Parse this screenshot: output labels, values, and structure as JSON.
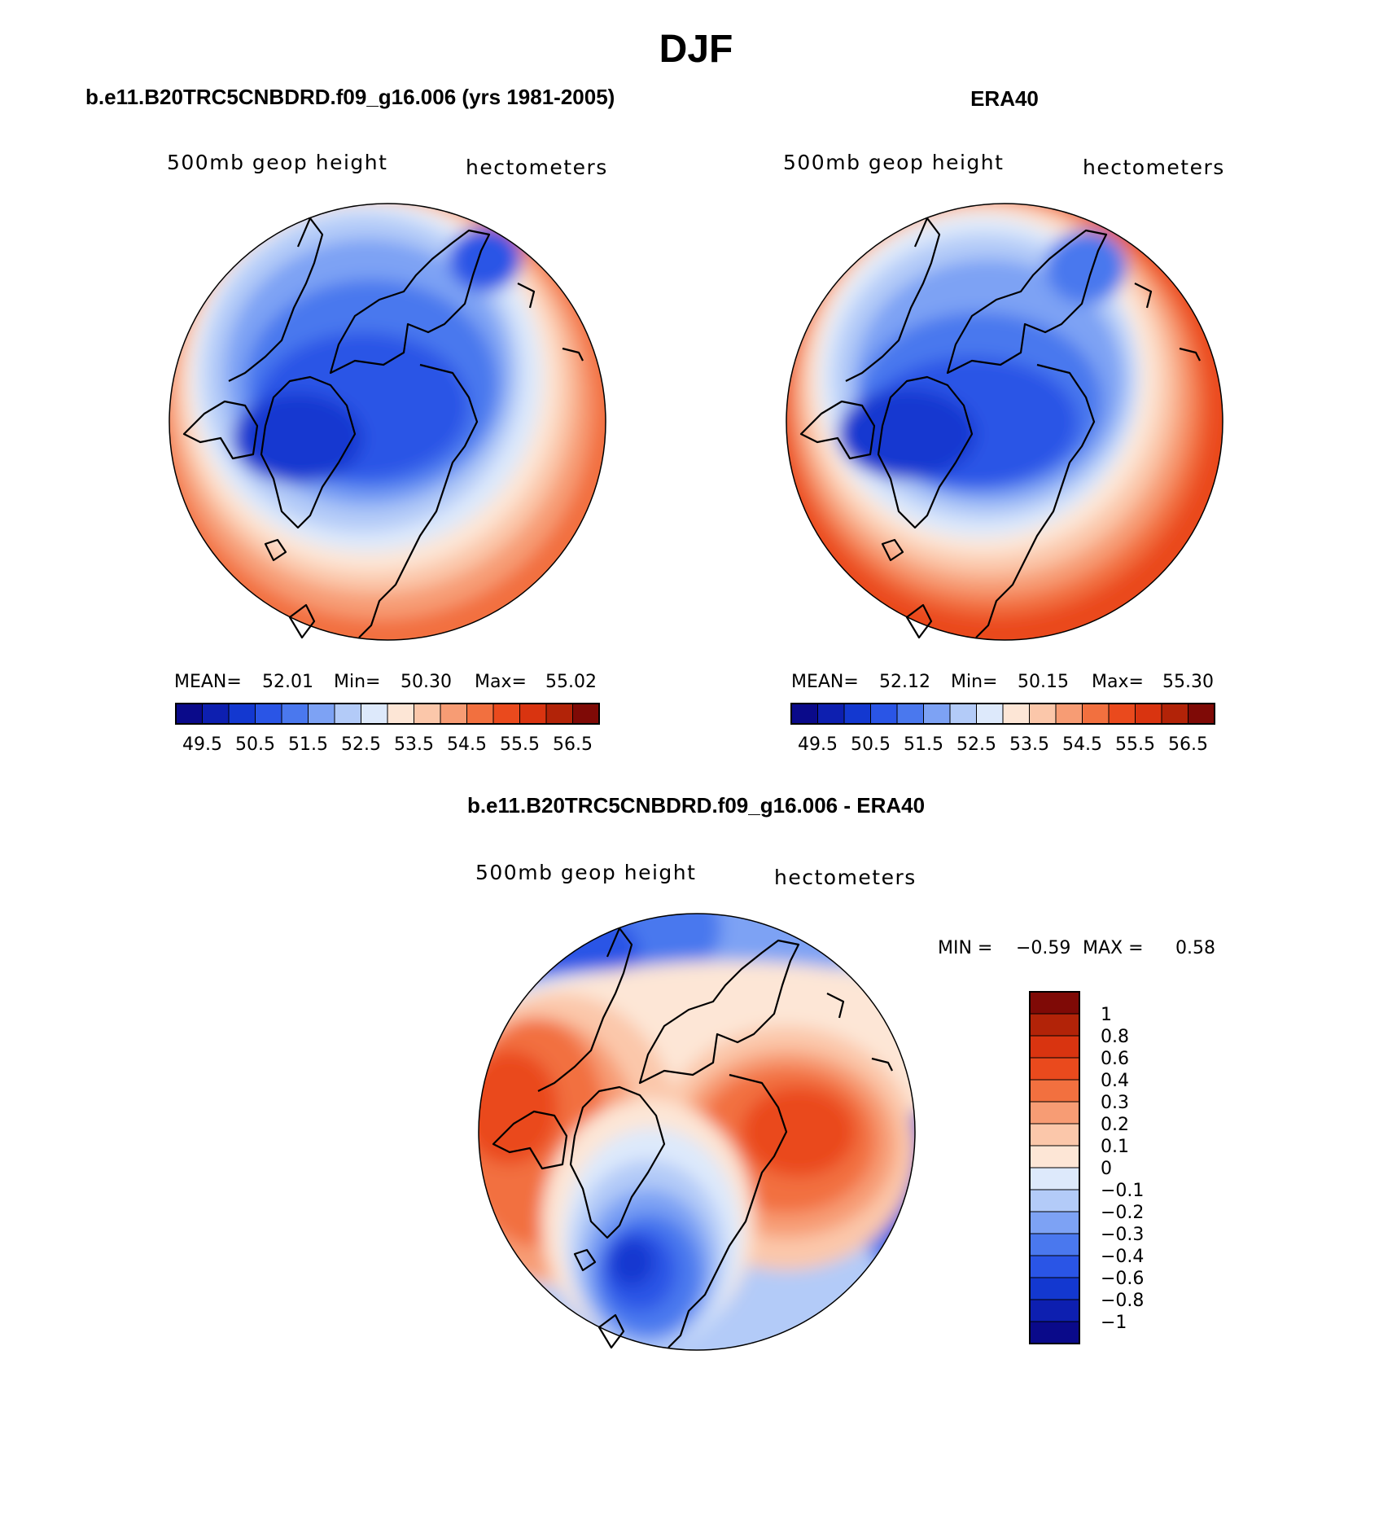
{
  "title": "DJF",
  "panels": {
    "model": {
      "heading": "b.e11.B20TRC5CNBDRD.f09_g16.006 (yrs 1981-2005)",
      "variable": "500mb geop height",
      "units": "hectometers",
      "stats": {
        "mean_label": "MEAN=",
        "mean": "52.01",
        "min_label": "Min=",
        "min": "50.30",
        "max_label": "Max=",
        "max": "55.02"
      }
    },
    "obs": {
      "heading": "ERA40",
      "variable": "500mb geop height",
      "units": "hectometers",
      "stats": {
        "mean_label": "MEAN=",
        "mean": "52.12",
        "min_label": "Min=",
        "min": "50.15",
        "max_label": "Max=",
        "max": "55.30"
      }
    },
    "diff": {
      "heading": "b.e11.B20TRC5CNBDRD.f09_g16.006 - ERA40",
      "variable": "500mb geop height",
      "units": "hectometers",
      "stats": {
        "min_label": "MIN =",
        "min": "−0.59",
        "max_label": "MAX =",
        "max": "0.58"
      }
    }
  },
  "colorbars": {
    "height": {
      "colors": [
        "#0a0a8a",
        "#0d1fb0",
        "#1338d0",
        "#2a55e6",
        "#4a78ee",
        "#7da2f4",
        "#b3cbf8",
        "#dde9fb",
        "#fde6d6",
        "#fbc7aa",
        "#f79c74",
        "#f2703f",
        "#ea4a1d",
        "#d93410",
        "#b22308",
        "#7f0a06"
      ],
      "labels": [
        "49.5",
        "50.5",
        "51.5",
        "52.5",
        "53.5",
        "54.5",
        "55.5",
        "56.5"
      ]
    },
    "diff": {
      "colors": [
        "#7f0a06",
        "#b22308",
        "#d93410",
        "#ea4a1d",
        "#f2703f",
        "#f79c74",
        "#fbc7aa",
        "#fde6d6",
        "#dde9fb",
        "#b3cbf8",
        "#7da2f4",
        "#4a78ee",
        "#2a55e6",
        "#1338d0",
        "#0d1fb0",
        "#0a0a8a"
      ],
      "labels": [
        "1",
        "0.8",
        "0.6",
        "0.4",
        "0.3",
        "0.2",
        "0.1",
        "0",
        "−0.1",
        "−0.2",
        "−0.3",
        "−0.4",
        "−0.6",
        "−0.8",
        "−1"
      ]
    }
  }
}
